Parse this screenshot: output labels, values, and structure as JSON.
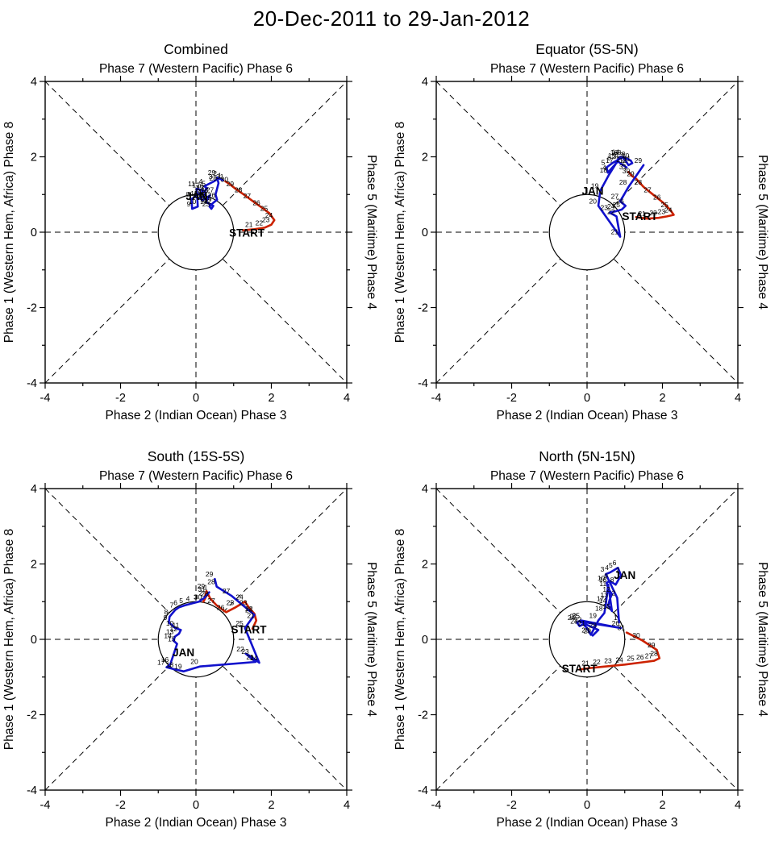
{
  "main_title": "20-Dec-2011 to 29-Jan-2012",
  "chart_data": {
    "type": "line",
    "description": "MJO phase-space trajectory diagrams (RMM-style), 2x2 panel layout",
    "axes": {
      "top_label": "Phase 7 (Western Pacific) Phase 6",
      "bottom_label": "Phase 2 (Indian Ocean) Phase 3",
      "left_label": "Phase 1 (Western Hem, Africa) Phase 8",
      "right_label": "Phase 5 (Maritime) Phase 4",
      "xlim": [
        -4,
        4
      ],
      "ylim": [
        -4,
        4
      ],
      "major_ticks": [
        -4,
        -2,
        0,
        2,
        4
      ],
      "minor_ticks": [
        -3,
        -1,
        1,
        3
      ],
      "unit_circle_radius": 1,
      "grid": "dashed cross and diagonals through origin"
    },
    "series_colors": {
      "december": "#cc2200",
      "january": "#1111cc"
    },
    "panels": [
      {
        "title": "Combined",
        "series": [
          {
            "name": "December",
            "color": "#cc2200",
            "points": [
              [
                1.25,
                0.05,
                ""
              ],
              [
                1.55,
                0.08,
                "21"
              ],
              [
                1.82,
                0.12,
                "22"
              ],
              [
                2.0,
                0.2,
                "23"
              ],
              [
                2.08,
                0.32,
                "24"
              ],
              [
                1.95,
                0.5,
                "25"
              ],
              [
                1.75,
                0.65,
                "26"
              ],
              [
                1.5,
                0.83,
                "27"
              ],
              [
                1.27,
                1.0,
                "28"
              ],
              [
                1.05,
                1.15,
                "29"
              ],
              [
                0.9,
                1.27,
                "30"
              ],
              [
                0.78,
                1.35,
                "31"
              ]
            ]
          },
          {
            "name": "January",
            "color": "#1111cc",
            "points": [
              [
                0.72,
                1.38,
                "1"
              ],
              [
                0.6,
                1.43,
                "2"
              ],
              [
                0.48,
                1.35,
                "3"
              ],
              [
                0.22,
                1.22,
                "4"
              ],
              [
                0.3,
                1.17,
                "5"
              ],
              [
                0.24,
                1.1,
                "6"
              ],
              [
                0.13,
                1.05,
                "7"
              ],
              [
                -0.12,
                0.88,
                "8"
              ],
              [
                -0.1,
                0.62,
                "9"
              ],
              [
                0.05,
                0.68,
                "10"
              ],
              [
                0.02,
                1.15,
                "11"
              ],
              [
                0.15,
                1.12,
                "12"
              ],
              [
                0.26,
                1.05,
                "13"
              ],
              [
                0.2,
                0.95,
                "14"
              ],
              [
                0.1,
                0.9,
                "15"
              ],
              [
                0.18,
                0.85,
                "16"
              ],
              [
                0.3,
                0.92,
                "17"
              ],
              [
                0.37,
                0.98,
                "18"
              ],
              [
                0.31,
                0.88,
                "19"
              ],
              [
                0.26,
                0.8,
                "20"
              ],
              [
                0.36,
                0.75,
                "21"
              ],
              [
                0.46,
                0.7,
                "22"
              ],
              [
                0.41,
                0.62,
                "23"
              ],
              [
                0.36,
                0.68,
                "24"
              ],
              [
                0.46,
                0.78,
                "25"
              ],
              [
                0.56,
                0.86,
                "26"
              ],
              [
                0.52,
                1.0,
                "27"
              ],
              [
                0.6,
                1.3,
                "28"
              ],
              [
                0.56,
                1.45,
                "29"
              ]
            ]
          }
        ],
        "annotations": [
          {
            "text": "START",
            "x": 1.35,
            "y": -0.12,
            "color": "#000000"
          },
          {
            "text": "JAN",
            "x": 0.02,
            "y": 0.86,
            "color": "#1111cc"
          }
        ]
      },
      {
        "title": "Equator (5S-5N)",
        "series": [
          {
            "name": "December",
            "color": "#cc2200",
            "points": [
              [
                1.3,
                0.4,
                ""
              ],
              [
                1.6,
                0.36,
                "21"
              ],
              [
                1.9,
                0.38,
                "22"
              ],
              [
                2.12,
                0.42,
                "23"
              ],
              [
                2.3,
                0.46,
                "24"
              ],
              [
                2.2,
                0.6,
                "25"
              ],
              [
                2.0,
                0.8,
                "26"
              ],
              [
                1.75,
                1.0,
                "27"
              ],
              [
                1.5,
                1.2,
                "28"
              ],
              [
                1.3,
                1.42,
                "29"
              ],
              [
                1.18,
                1.5,
                "30"
              ],
              [
                1.1,
                1.6,
                "31"
              ]
            ]
          },
          {
            "name": "January",
            "color": "#1111cc",
            "points": [
              [
                1.05,
                1.72,
                "1"
              ],
              [
                0.92,
                1.8,
                "2"
              ],
              [
                0.82,
                1.88,
                "3"
              ],
              [
                0.55,
                1.58,
                "4"
              ],
              [
                0.52,
                1.72,
                "5"
              ],
              [
                0.68,
                1.84,
                "6"
              ],
              [
                0.84,
                1.93,
                "7"
              ],
              [
                0.95,
                1.99,
                "8"
              ],
              [
                1.06,
                1.95,
                "9"
              ],
              [
                1.16,
                1.9,
                "10"
              ],
              [
                1.2,
                1.83,
                "11"
              ],
              [
                1.1,
                1.78,
                "12"
              ],
              [
                1.0,
                1.93,
                "13"
              ],
              [
                0.9,
                2.0,
                "14"
              ],
              [
                0.8,
                1.9,
                "15"
              ],
              [
                0.86,
                1.99,
                "16"
              ],
              [
                0.74,
                1.78,
                "17"
              ],
              [
                0.58,
                1.52,
                "18"
              ],
              [
                0.35,
                1.1,
                "19"
              ],
              [
                0.3,
                0.7,
                "20"
              ],
              [
                0.88,
                -0.12,
                "21"
              ],
              [
                0.78,
                0.42,
                "22"
              ],
              [
                0.6,
                0.52,
                "23"
              ],
              [
                0.78,
                0.56,
                "24"
              ],
              [
                0.92,
                0.6,
                "25"
              ],
              [
                1.02,
                0.7,
                "26"
              ],
              [
                0.88,
                0.82,
                "27"
              ],
              [
                1.1,
                1.2,
                "28"
              ],
              [
                1.5,
                1.78,
                "29"
              ]
            ]
          }
        ],
        "annotations": [
          {
            "text": "START",
            "x": 1.4,
            "y": 0.32,
            "color": "#000000"
          },
          {
            "text": "JAN",
            "x": 0.15,
            "y": 1.0,
            "color": "#1111cc"
          }
        ]
      },
      {
        "title": "South (15S-5S)",
        "series": [
          {
            "name": "December",
            "color": "#cc2200",
            "points": [
              [
                1.5,
                0.28,
                ""
              ],
              [
                1.6,
                0.5,
                "21"
              ],
              [
                1.55,
                0.68,
                "22"
              ],
              [
                1.4,
                0.85,
                "23"
              ],
              [
                1.3,
                1.0,
                "24"
              ],
              [
                1.05,
                0.85,
                "25"
              ],
              [
                0.8,
                0.72,
                "26"
              ],
              [
                0.55,
                0.9,
                "27"
              ],
              [
                0.38,
                1.08,
                "28"
              ],
              [
                0.28,
                1.28,
                "29"
              ],
              [
                0.2,
                1.0,
                "30"
              ],
              [
                0.3,
                1.2,
                "31"
              ]
            ]
          },
          {
            "name": "January",
            "color": "#1111cc",
            "points": [
              [
                0.35,
                1.25,
                "1"
              ],
              [
                0.22,
                1.1,
                "2"
              ],
              [
                0.08,
                1.0,
                "3"
              ],
              [
                -0.12,
                0.95,
                "4"
              ],
              [
                -0.3,
                0.9,
                "5"
              ],
              [
                -0.45,
                0.85,
                "6"
              ],
              [
                -0.55,
                0.78,
                "7"
              ],
              [
                -0.7,
                0.6,
                "8"
              ],
              [
                -0.72,
                0.45,
                "9"
              ],
              [
                -0.55,
                0.3,
                "10"
              ],
              [
                -0.4,
                0.25,
                "11"
              ],
              [
                -0.45,
                0.15,
                "12"
              ],
              [
                -0.55,
                0.08,
                "13"
              ],
              [
                -0.6,
                -0.03,
                "14"
              ],
              [
                -0.5,
                -0.12,
                "15"
              ],
              [
                -0.68,
                -0.66,
                "16"
              ],
              [
                -0.78,
                -0.74,
                "17"
              ],
              [
                -0.55,
                -0.8,
                "18"
              ],
              [
                -0.33,
                -0.85,
                "19"
              ],
              [
                0.1,
                -0.72,
                "20"
              ],
              [
                1.58,
                -0.6,
                "21"
              ],
              [
                1.32,
                -0.38,
                "22"
              ],
              [
                1.45,
                -0.45,
                "23"
              ],
              [
                1.68,
                -0.62,
                "24"
              ],
              [
                1.3,
                0.3,
                "25"
              ],
              [
                1.55,
                0.65,
                "26"
              ],
              [
                0.95,
                1.15,
                "27"
              ],
              [
                0.55,
                1.4,
                "28"
              ],
              [
                0.5,
                1.6,
                "29"
              ]
            ]
          }
        ],
        "annotations": [
          {
            "text": "START",
            "x": 1.4,
            "y": 0.16,
            "color": "#000000"
          },
          {
            "text": "JAN",
            "x": -0.33,
            "y": -0.45,
            "color": "#1111cc"
          }
        ]
      },
      {
        "title": "North (5N-15N)",
        "series": [
          {
            "name": "December",
            "color": "#cc2200",
            "points": [
              [
                -0.2,
                -0.8,
                ""
              ],
              [
                0.1,
                -0.76,
                "21"
              ],
              [
                0.4,
                -0.73,
                "22"
              ],
              [
                0.7,
                -0.7,
                "23"
              ],
              [
                1.0,
                -0.67,
                "24"
              ],
              [
                1.3,
                -0.63,
                "25"
              ],
              [
                1.55,
                -0.6,
                "26"
              ],
              [
                1.78,
                -0.57,
                "27"
              ],
              [
                1.92,
                -0.5,
                "28"
              ],
              [
                1.85,
                -0.28,
                "29"
              ],
              [
                1.45,
                -0.02,
                "30"
              ],
              [
                1.05,
                0.18,
                "31"
              ]
            ]
          },
          {
            "name": "January",
            "color": "#1111cc",
            "points": [
              [
                0.85,
                0.45,
                "1"
              ],
              [
                0.8,
                1.1,
                "2"
              ],
              [
                0.5,
                1.73,
                "3"
              ],
              [
                0.62,
                1.78,
                "4"
              ],
              [
                0.72,
                1.84,
                "5"
              ],
              [
                0.82,
                1.9,
                "6"
              ],
              [
                0.9,
                1.7,
                "7"
              ],
              [
                0.76,
                1.45,
                "8"
              ],
              [
                0.6,
                1.55,
                "9"
              ],
              [
                0.52,
                1.5,
                "10"
              ],
              [
                0.56,
                1.35,
                "11"
              ],
              [
                0.66,
                1.2,
                "12"
              ],
              [
                0.6,
                1.05,
                "13"
              ],
              [
                0.56,
                0.9,
                "14"
              ],
              [
                0.66,
                0.75,
                "15"
              ],
              [
                0.56,
                1.45,
                "16"
              ],
              [
                0.5,
                0.95,
                "17"
              ],
              [
                0.46,
                0.7,
                "18"
              ],
              [
                0.3,
                0.5,
                "19"
              ],
              [
                0.1,
                0.12,
                "20"
              ],
              [
                0.0,
                0.3,
                "21"
              ],
              [
                -0.1,
                0.4,
                "22"
              ],
              [
                -0.2,
                0.35,
                "23"
              ],
              [
                -0.27,
                0.45,
                "24"
              ],
              [
                -0.15,
                0.5,
                "25"
              ],
              [
                0.9,
                0.3,
                "26"
              ],
              [
                -0.22,
                0.48,
                "27"
              ],
              [
                0.3,
                0.25,
                "28"
              ],
              [
                0.15,
                0.1,
                "29"
              ]
            ]
          }
        ],
        "annotations": [
          {
            "text": "START",
            "x": -0.2,
            "y": -0.88,
            "color": "#000000"
          },
          {
            "text": "JAN",
            "x": 1.0,
            "y": 1.6,
            "color": "#1111cc"
          }
        ]
      }
    ]
  }
}
